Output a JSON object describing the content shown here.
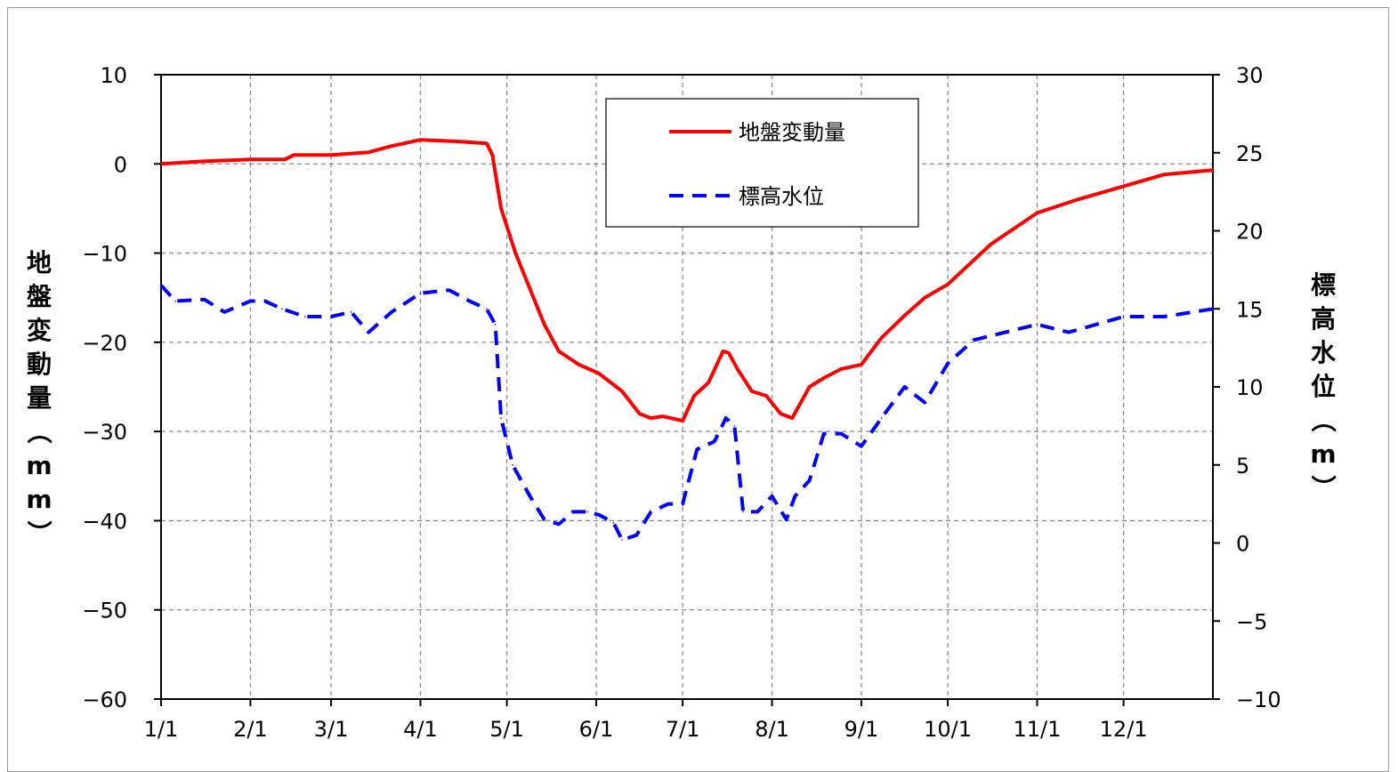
{
  "chart_data": {
    "type": "line",
    "x_tick_labels": [
      "1/1",
      "2/1",
      "3/1",
      "4/1",
      "5/1",
      "6/1",
      "7/1",
      "8/1",
      "9/1",
      "10/1",
      "11/1",
      "12/1"
    ],
    "x_day_of_year": [
      0,
      31,
      59,
      90,
      120,
      151,
      181,
      212,
      243,
      273,
      304,
      334
    ],
    "x_range": [
      0,
      365
    ],
    "y_left": {
      "label": "地盤変動量（mm）",
      "ticks": [
        "10",
        "0",
        "−10",
        "−20",
        "−30",
        "−40",
        "−50",
        "−60"
      ],
      "range": [
        -60,
        10
      ]
    },
    "y_right": {
      "label": "標高水位（m）",
      "ticks": [
        "30",
        "25",
        "20",
        "15",
        "10",
        "5",
        "0",
        "−5",
        "−10"
      ],
      "range": [
        -10,
        30
      ]
    },
    "grid": true,
    "legend_position": "top-center",
    "series": [
      {
        "name": "地盤変動量",
        "axis": "left",
        "color": "#ff0000",
        "style": "solid",
        "points": [
          [
            0,
            0
          ],
          [
            15,
            0.3
          ],
          [
            31,
            0.5
          ],
          [
            43,
            0.5
          ],
          [
            46,
            1
          ],
          [
            59,
            1
          ],
          [
            72,
            1.3
          ],
          [
            80,
            2
          ],
          [
            90,
            2.7
          ],
          [
            104,
            2.5
          ],
          [
            113,
            2.3
          ],
          [
            115,
            1
          ],
          [
            118,
            -5
          ],
          [
            123,
            -10
          ],
          [
            128,
            -14
          ],
          [
            133,
            -18
          ],
          [
            138,
            -21
          ],
          [
            145,
            -22.5
          ],
          [
            152,
            -23.5
          ],
          [
            160,
            -25.5
          ],
          [
            166,
            -28
          ],
          [
            170,
            -28.5
          ],
          [
            174,
            -28.3
          ],
          [
            181,
            -28.8
          ],
          [
            185,
            -26
          ],
          [
            190,
            -24.5
          ],
          [
            195,
            -21
          ],
          [
            197,
            -21.2
          ],
          [
            200,
            -23
          ],
          [
            205,
            -25.5
          ],
          [
            210,
            -26
          ],
          [
            215,
            -28
          ],
          [
            219,
            -28.5
          ],
          [
            225,
            -25
          ],
          [
            230,
            -24
          ],
          [
            236,
            -23
          ],
          [
            243,
            -22.5
          ],
          [
            250,
            -19.5
          ],
          [
            258,
            -17
          ],
          [
            265,
            -15
          ],
          [
            273,
            -13.5
          ],
          [
            288,
            -9
          ],
          [
            304,
            -5.5
          ],
          [
            318,
            -4
          ],
          [
            334,
            -2.5
          ],
          [
            348,
            -1.2
          ],
          [
            365,
            -0.7
          ]
        ]
      },
      {
        "name": "標高水位",
        "axis": "right",
        "color": "#0000ff",
        "style": "dashed",
        "points": [
          [
            0,
            16.5
          ],
          [
            5,
            15.5
          ],
          [
            15,
            15.6
          ],
          [
            22,
            14.8
          ],
          [
            31,
            15.5
          ],
          [
            36,
            15.5
          ],
          [
            42,
            15
          ],
          [
            50,
            14.5
          ],
          [
            59,
            14.5
          ],
          [
            66,
            14.8
          ],
          [
            72,
            13.5
          ],
          [
            80,
            14.8
          ],
          [
            90,
            16
          ],
          [
            100,
            16.2
          ],
          [
            107,
            15.5
          ],
          [
            113,
            15
          ],
          [
            116,
            14
          ],
          [
            118,
            8
          ],
          [
            122,
            5
          ],
          [
            128,
            3
          ],
          [
            133,
            1.5
          ],
          [
            138,
            1.2
          ],
          [
            143,
            2
          ],
          [
            148,
            2
          ],
          [
            152,
            1.8
          ],
          [
            157,
            1.3
          ],
          [
            160,
            0.2
          ],
          [
            165,
            0.5
          ],
          [
            170,
            2
          ],
          [
            176,
            2.5
          ],
          [
            181,
            2.5
          ],
          [
            186,
            6
          ],
          [
            192,
            6.5
          ],
          [
            196,
            8
          ],
          [
            199,
            7.5
          ],
          [
            202,
            2
          ],
          [
            207,
            2
          ],
          [
            212,
            3
          ],
          [
            217,
            1.5
          ],
          [
            220,
            3
          ],
          [
            225,
            4
          ],
          [
            230,
            7
          ],
          [
            236,
            7
          ],
          [
            243,
            6.2
          ],
          [
            250,
            8
          ],
          [
            258,
            10
          ],
          [
            265,
            9
          ],
          [
            273,
            11.5
          ],
          [
            282,
            13
          ],
          [
            304,
            14
          ],
          [
            315,
            13.5
          ],
          [
            334,
            14.5
          ],
          [
            348,
            14.5
          ],
          [
            365,
            15
          ]
        ]
      }
    ]
  },
  "legend": [
    {
      "label": "地盤変動量",
      "color": "#ff0000",
      "style": "solid"
    },
    {
      "label": "標高水位",
      "color": "#0000ff",
      "style": "dashed"
    }
  ]
}
